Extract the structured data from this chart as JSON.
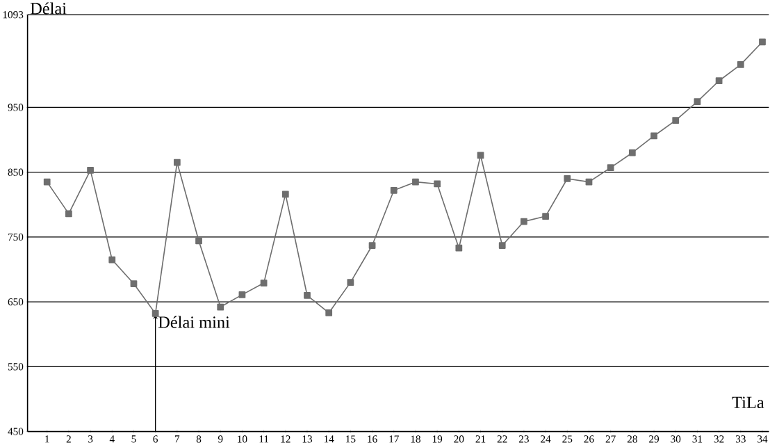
{
  "chart_data": {
    "type": "line",
    "xlabel": "TiLa",
    "ylabel": "Délai",
    "categories": [
      "1",
      "2",
      "3",
      "4",
      "5",
      "6",
      "7",
      "8",
      "9",
      "10",
      "11",
      "12",
      "13",
      "14",
      "15",
      "16",
      "17",
      "18",
      "19",
      "20",
      "21",
      "22",
      "23",
      "24",
      "25",
      "26",
      "27",
      "28",
      "29",
      "30",
      "31",
      "32",
      "33",
      "34"
    ],
    "series": [
      {
        "color": "#6e6e6e",
        "values": [
          835,
          786,
          853,
          715,
          678,
          632,
          865,
          744,
          642,
          661,
          679,
          816,
          660,
          633,
          680,
          737,
          822,
          835,
          832,
          733,
          876,
          737,
          774,
          782,
          840,
          835,
          857,
          880,
          906,
          930,
          959,
          991,
          1016,
          1051
        ]
      }
    ],
    "ylim": [
      450,
      1093
    ],
    "yticks": [
      450,
      550,
      650,
      750,
      850,
      950,
      1093
    ],
    "grid": "y",
    "marker": "square",
    "line_style": "solid",
    "annotations": [
      {
        "text": "Délai mini",
        "x": "6",
        "y": 632
      }
    ]
  }
}
